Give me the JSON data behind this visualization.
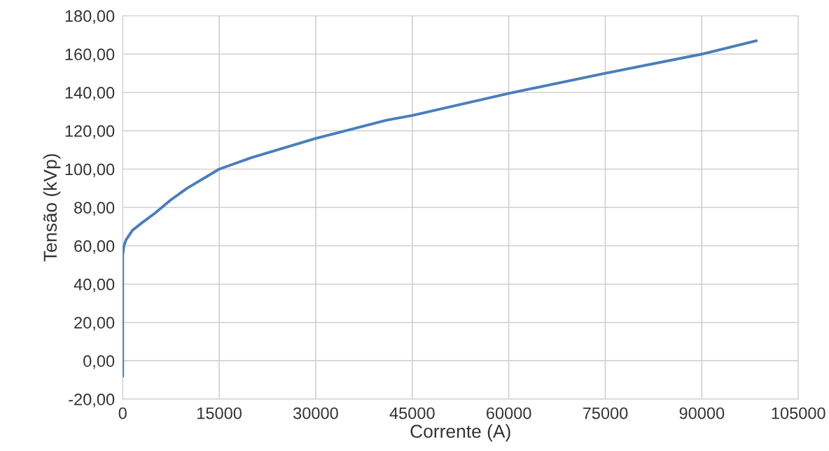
{
  "chart_data": {
    "type": "line",
    "xlabel": "Corrente (A)",
    "ylabel": "Tensão (kVp)",
    "x": [
      0,
      0,
      0,
      200,
      500,
      1500,
      3000,
      5000,
      7500,
      10000,
      15000,
      20000,
      30000,
      41000,
      45000,
      60000,
      75000,
      90000,
      98500
    ],
    "series": [
      {
        "color": "#4a7ebb",
        "values": [
          -8,
          40,
          55,
          60,
          63,
          68,
          72,
          77,
          84,
          90,
          100,
          106,
          116,
          125.5,
          128,
          139.5,
          150,
          160,
          167
        ]
      }
    ],
    "xlim": [
      0,
      105000
    ],
    "xticks": [
      0,
      15000,
      30000,
      45000,
      60000,
      75000,
      90000,
      105000
    ],
    "ylim": [
      -20,
      180
    ],
    "yticks": [
      {
        "value": -20,
        "label": "-20,00"
      },
      {
        "value": 0,
        "label": "0,00"
      },
      {
        "value": 20,
        "label": "20,00"
      },
      {
        "value": 40,
        "label": "40,00"
      },
      {
        "value": 60,
        "label": "60,00"
      },
      {
        "value": 80,
        "label": "80,00"
      },
      {
        "value": 100,
        "label": "100,00"
      },
      {
        "value": 120,
        "label": "120,00"
      },
      {
        "value": 140,
        "label": "140,00"
      },
      {
        "value": 160,
        "label": "160,00"
      },
      {
        "value": 180,
        "label": "180,00"
      }
    ],
    "grid": true,
    "marker": "none",
    "line_style": "solid"
  }
}
